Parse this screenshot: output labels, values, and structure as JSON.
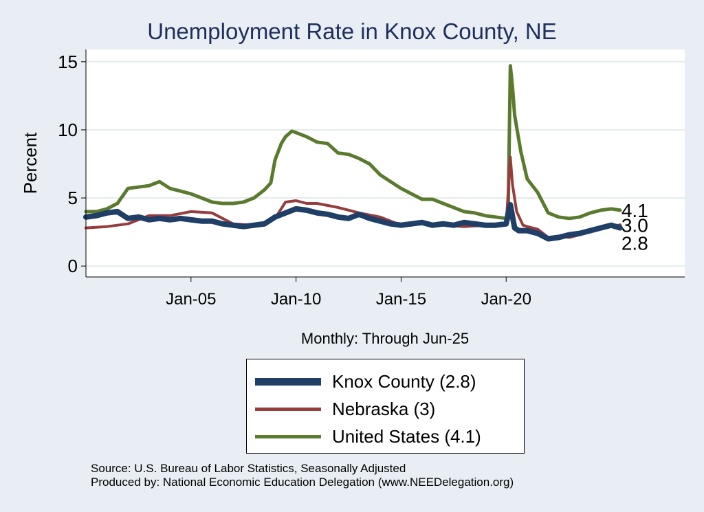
{
  "chart_data": {
    "type": "line",
    "title": "Unemployment Rate in Knox  County, NE",
    "xlabel": "Monthly: Through Jun-25",
    "ylabel": "Percent",
    "xlim": [
      2000.0,
      2028.5
    ],
    "ylim": [
      -0.8,
      15.9
    ],
    "yticks": [
      0,
      5,
      10,
      15
    ],
    "xticks": [
      {
        "label": "Jan-05",
        "value": 2005.0
      },
      {
        "label": "Jan-10",
        "value": 2010.0
      },
      {
        "label": "Jan-15",
        "value": 2015.0
      },
      {
        "label": "Jan-20",
        "value": 2020.0
      }
    ],
    "grid": "horizontal",
    "legend_position": "bottom",
    "series": [
      {
        "name": "United States",
        "legend": "United States (4.1)",
        "color": "#5a7a2e",
        "end_label": "4.1",
        "x": [
          2000.0,
          2000.5,
          2001.0,
          2001.5,
          2002.0,
          2002.5,
          2003.0,
          2003.5,
          2004.0,
          2004.5,
          2005.0,
          2005.5,
          2006.0,
          2006.5,
          2007.0,
          2007.5,
          2008.0,
          2008.5,
          2008.8,
          2009.0,
          2009.3,
          2009.5,
          2009.8,
          2010.0,
          2010.5,
          2011.0,
          2011.5,
          2012.0,
          2012.5,
          2013.0,
          2013.5,
          2014.0,
          2014.5,
          2015.0,
          2015.5,
          2016.0,
          2016.5,
          2017.0,
          2017.5,
          2018.0,
          2018.5,
          2019.0,
          2019.5,
          2020.0,
          2020.1,
          2020.2,
          2020.3,
          2020.4,
          2020.5,
          2020.7,
          2021.0,
          2021.5,
          2022.0,
          2022.5,
          2023.0,
          2023.5,
          2024.0,
          2024.5,
          2025.0,
          2025.42
        ],
        "y": [
          4.0,
          4.0,
          4.2,
          4.6,
          5.7,
          5.8,
          5.9,
          6.2,
          5.7,
          5.5,
          5.3,
          5.0,
          4.7,
          4.6,
          4.6,
          4.7,
          5.0,
          5.6,
          6.1,
          7.8,
          9.0,
          9.5,
          9.9,
          9.8,
          9.5,
          9.1,
          9.0,
          8.3,
          8.2,
          7.9,
          7.5,
          6.7,
          6.2,
          5.7,
          5.3,
          4.9,
          4.9,
          4.6,
          4.3,
          4.0,
          3.9,
          3.7,
          3.6,
          3.5,
          4.4,
          14.7,
          13.2,
          11.1,
          10.2,
          8.4,
          6.4,
          5.4,
          3.9,
          3.6,
          3.5,
          3.6,
          3.9,
          4.1,
          4.2,
          4.1
        ]
      },
      {
        "name": "Nebraska",
        "legend": "Nebraska (3)",
        "color": "#963c3c",
        "end_label": "3.0",
        "x": [
          2000.0,
          2001.0,
          2002.0,
          2003.0,
          2004.0,
          2005.0,
          2006.0,
          2007.0,
          2008.0,
          2008.5,
          2009.0,
          2009.5,
          2010.0,
          2010.5,
          2011.0,
          2012.0,
          2013.0,
          2014.0,
          2015.0,
          2016.0,
          2017.0,
          2018.0,
          2019.0,
          2020.0,
          2020.2,
          2020.3,
          2020.5,
          2020.8,
          2021.0,
          2021.5,
          2022.0,
          2022.5,
          2023.0,
          2023.5,
          2024.0,
          2024.5,
          2025.0,
          2025.42
        ],
        "y": [
          2.8,
          2.9,
          3.1,
          3.7,
          3.7,
          4.0,
          3.9,
          3.1,
          3.0,
          3.0,
          3.5,
          4.7,
          4.8,
          4.6,
          4.6,
          4.3,
          3.9,
          3.6,
          3.0,
          3.1,
          3.0,
          2.9,
          3.0,
          3.0,
          8.0,
          6.0,
          4.0,
          3.0,
          2.9,
          2.7,
          2.1,
          2.2,
          2.1,
          2.3,
          2.6,
          2.8,
          3.0,
          3.0
        ]
      },
      {
        "name": "Knox  County",
        "legend": "Knox  County (2.8)",
        "color": "#1f3f66",
        "end_label": "2.8",
        "x": [
          2000.0,
          2000.5,
          2001.0,
          2001.5,
          2002.0,
          2002.5,
          2003.0,
          2003.5,
          2004.0,
          2004.5,
          2005.0,
          2005.5,
          2006.0,
          2006.5,
          2007.0,
          2007.5,
          2008.0,
          2008.5,
          2009.0,
          2009.5,
          2010.0,
          2010.5,
          2011.0,
          2011.5,
          2012.0,
          2012.5,
          2013.0,
          2013.5,
          2014.0,
          2014.5,
          2015.0,
          2015.5,
          2016.0,
          2016.5,
          2017.0,
          2017.5,
          2018.0,
          2018.5,
          2019.0,
          2019.5,
          2020.0,
          2020.2,
          2020.4,
          2020.6,
          2021.0,
          2021.5,
          2022.0,
          2022.5,
          2023.0,
          2023.5,
          2024.0,
          2024.5,
          2025.0,
          2025.42
        ],
        "y": [
          3.6,
          3.7,
          3.9,
          4.0,
          3.5,
          3.6,
          3.4,
          3.5,
          3.4,
          3.5,
          3.4,
          3.3,
          3.3,
          3.1,
          3.0,
          2.9,
          3.0,
          3.1,
          3.6,
          3.9,
          4.2,
          4.1,
          3.9,
          3.8,
          3.6,
          3.5,
          3.8,
          3.5,
          3.3,
          3.1,
          3.0,
          3.1,
          3.2,
          3.0,
          3.1,
          3.0,
          3.2,
          3.1,
          3.0,
          3.0,
          3.1,
          4.5,
          2.8,
          2.6,
          2.6,
          2.4,
          2.0,
          2.1,
          2.3,
          2.4,
          2.6,
          2.8,
          3.0,
          2.8
        ]
      }
    ]
  },
  "legend_items": [
    {
      "label": "Knox  County (2.8)",
      "color": "#1f3f66"
    },
    {
      "label": "Nebraska (3)",
      "color": "#963c3c"
    },
    {
      "label": "United States (4.1)",
      "color": "#5a7a2e"
    }
  ],
  "source": {
    "line1": "Source: U.S. Bureau of Labor Statistics, Seasonally Adjusted",
    "line2": "Produced by: National Economic Education Delegation (www.NEEDelegation.org)"
  }
}
